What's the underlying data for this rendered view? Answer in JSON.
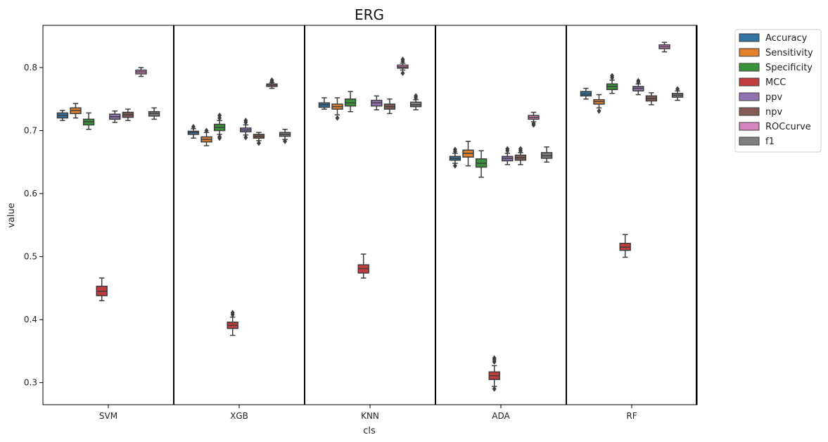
{
  "chart_data": {
    "type": "box",
    "title": "ERG",
    "xlabel": "cls",
    "ylabel": "value",
    "ylim": [
      0.265,
      0.867
    ],
    "yticks": [
      "0.3",
      "0.4",
      "0.5",
      "0.6",
      "0.7",
      "0.8"
    ],
    "ytick_values": [
      0.3,
      0.4,
      0.5,
      0.6,
      0.7,
      0.8
    ],
    "categories": [
      "SVM",
      "XGB",
      "KNN",
      "ADA",
      "RF"
    ],
    "legend_position": "outside-top-right",
    "series": [
      {
        "name": "Accuracy",
        "color": "#3274a1",
        "boxes": [
          {
            "min": 0.716,
            "q1": 0.72,
            "median": 0.724,
            "q3": 0.728,
            "max": 0.732,
            "outliers": []
          },
          {
            "min": 0.688,
            "q1": 0.694,
            "median": 0.697,
            "q3": 0.699,
            "max": 0.703,
            "outliers": [
              0.706
            ]
          },
          {
            "min": 0.734,
            "q1": 0.737,
            "median": 0.741,
            "q3": 0.744,
            "max": 0.752,
            "outliers": []
          },
          {
            "min": 0.648,
            "q1": 0.653,
            "median": 0.656,
            "q3": 0.659,
            "max": 0.664,
            "outliers": [
              0.644,
              0.667,
              0.67
            ]
          },
          {
            "min": 0.75,
            "q1": 0.755,
            "median": 0.758,
            "q3": 0.762,
            "max": 0.767,
            "outliers": []
          }
        ]
      },
      {
        "name": "Sensitivity",
        "color": "#e1812c",
        "boxes": [
          {
            "min": 0.72,
            "q1": 0.727,
            "median": 0.732,
            "q3": 0.736,
            "max": 0.743,
            "outliers": []
          },
          {
            "min": 0.676,
            "q1": 0.682,
            "median": 0.686,
            "q3": 0.69,
            "max": 0.697,
            "outliers": [
              0.7
            ]
          },
          {
            "min": 0.725,
            "q1": 0.734,
            "median": 0.738,
            "q3": 0.742,
            "max": 0.752,
            "outliers": [
              0.72
            ]
          },
          {
            "min": 0.644,
            "q1": 0.658,
            "median": 0.664,
            "q3": 0.669,
            "max": 0.683,
            "outliers": []
          },
          {
            "min": 0.736,
            "q1": 0.742,
            "median": 0.746,
            "q3": 0.749,
            "max": 0.757,
            "outliers": [
              0.731
            ]
          }
        ]
      },
      {
        "name": "Specificity",
        "color": "#3a923a",
        "boxes": [
          {
            "min": 0.702,
            "q1": 0.709,
            "median": 0.714,
            "q3": 0.718,
            "max": 0.728,
            "outliers": []
          },
          {
            "min": 0.694,
            "q1": 0.7,
            "median": 0.705,
            "q3": 0.71,
            "max": 0.716,
            "outliers": [
              0.688,
              0.69,
              0.72,
              0.724
            ]
          },
          {
            "min": 0.73,
            "q1": 0.739,
            "median": 0.744,
            "q3": 0.75,
            "max": 0.762,
            "outliers": []
          },
          {
            "min": 0.626,
            "q1": 0.642,
            "median": 0.648,
            "q3": 0.655,
            "max": 0.668,
            "outliers": []
          },
          {
            "min": 0.759,
            "q1": 0.765,
            "median": 0.77,
            "q3": 0.774,
            "max": 0.78,
            "outliers": [
              0.784,
              0.787
            ]
          }
        ]
      },
      {
        "name": "MCC",
        "color": "#c03d3e",
        "boxes": [
          {
            "min": 0.43,
            "q1": 0.438,
            "median": 0.445,
            "q3": 0.453,
            "max": 0.466,
            "outliers": []
          },
          {
            "min": 0.375,
            "q1": 0.386,
            "median": 0.391,
            "q3": 0.396,
            "max": 0.404,
            "outliers": [
              0.408,
              0.411
            ]
          },
          {
            "min": 0.466,
            "q1": 0.474,
            "median": 0.481,
            "q3": 0.487,
            "max": 0.504,
            "outliers": []
          },
          {
            "min": 0.294,
            "q1": 0.305,
            "median": 0.311,
            "q3": 0.317,
            "max": 0.327,
            "outliers": [
              0.29,
              0.333,
              0.336,
              0.339
            ]
          },
          {
            "min": 0.499,
            "q1": 0.51,
            "median": 0.515,
            "q3": 0.521,
            "max": 0.535,
            "outliers": []
          }
        ]
      },
      {
        "name": "ppv",
        "color": "#9372b2",
        "boxes": [
          {
            "min": 0.713,
            "q1": 0.718,
            "median": 0.722,
            "q3": 0.726,
            "max": 0.731,
            "outliers": []
          },
          {
            "min": 0.693,
            "q1": 0.698,
            "median": 0.701,
            "q3": 0.704,
            "max": 0.709,
            "outliers": [
              0.689,
              0.713,
              0.716
            ]
          },
          {
            "min": 0.733,
            "q1": 0.739,
            "median": 0.744,
            "q3": 0.748,
            "max": 0.755,
            "outliers": []
          },
          {
            "min": 0.646,
            "q1": 0.652,
            "median": 0.656,
            "q3": 0.659,
            "max": 0.664,
            "outliers": [
              0.668,
              0.671
            ]
          },
          {
            "min": 0.757,
            "q1": 0.763,
            "median": 0.767,
            "q3": 0.77,
            "max": 0.774,
            "outliers": [
              0.777,
              0.779
            ]
          }
        ]
      },
      {
        "name": "npv",
        "color": "#845b53",
        "boxes": [
          {
            "min": 0.716,
            "q1": 0.721,
            "median": 0.725,
            "q3": 0.729,
            "max": 0.734,
            "outliers": []
          },
          {
            "min": 0.684,
            "q1": 0.688,
            "median": 0.691,
            "q3": 0.694,
            "max": 0.697,
            "outliers": [
              0.68
            ]
          },
          {
            "min": 0.727,
            "q1": 0.734,
            "median": 0.738,
            "q3": 0.742,
            "max": 0.75,
            "outliers": []
          },
          {
            "min": 0.646,
            "q1": 0.653,
            "median": 0.657,
            "q3": 0.661,
            "max": 0.665,
            "outliers": [
              0.668,
              0.671
            ]
          },
          {
            "min": 0.741,
            "q1": 0.747,
            "median": 0.751,
            "q3": 0.755,
            "max": 0.76,
            "outliers": []
          }
        ]
      },
      {
        "name": "ROCcurve",
        "color": "#d684bd",
        "boxes": [
          {
            "min": 0.786,
            "q1": 0.79,
            "median": 0.793,
            "q3": 0.796,
            "max": 0.8,
            "outliers": []
          },
          {
            "min": 0.767,
            "q1": 0.77,
            "median": 0.772,
            "q3": 0.774,
            "max": 0.776,
            "outliers": [
              0.778,
              0.78
            ]
          },
          {
            "min": 0.796,
            "q1": 0.799,
            "median": 0.801,
            "q3": 0.804,
            "max": 0.807,
            "outliers": [
              0.791,
              0.81,
              0.813
            ]
          },
          {
            "min": 0.714,
            "q1": 0.718,
            "median": 0.721,
            "q3": 0.724,
            "max": 0.729,
            "outliers": [
              0.709,
              0.711
            ]
          },
          {
            "min": 0.825,
            "q1": 0.83,
            "median": 0.833,
            "q3": 0.836,
            "max": 0.84,
            "outliers": []
          }
        ]
      },
      {
        "name": "f1",
        "color": "#7f7f7f",
        "boxes": [
          {
            "min": 0.718,
            "q1": 0.723,
            "median": 0.727,
            "q3": 0.73,
            "max": 0.736,
            "outliers": []
          },
          {
            "min": 0.686,
            "q1": 0.691,
            "median": 0.694,
            "q3": 0.697,
            "max": 0.702,
            "outliers": [
              0.683
            ]
          },
          {
            "min": 0.733,
            "q1": 0.738,
            "median": 0.741,
            "q3": 0.745,
            "max": 0.749,
            "outliers": [
              0.752,
              0.755
            ]
          },
          {
            "min": 0.65,
            "q1": 0.656,
            "median": 0.66,
            "q3": 0.665,
            "max": 0.674,
            "outliers": []
          },
          {
            "min": 0.748,
            "q1": 0.753,
            "median": 0.756,
            "q3": 0.759,
            "max": 0.763,
            "outliers": [
              0.766
            ]
          }
        ]
      }
    ]
  }
}
